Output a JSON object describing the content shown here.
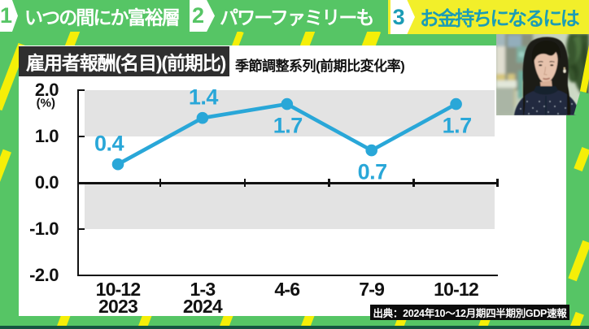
{
  "tab_bar": {
    "tabs": [
      {
        "number": "1",
        "label": "いつの間にか富裕層",
        "active": false
      },
      {
        "number": "2",
        "label": "パワーファミリーも",
        "active": false
      },
      {
        "number": "3",
        "label": "お金持ちになるには",
        "active": true
      }
    ]
  },
  "chart_header": {
    "title": "雇用者報酬(名目)(前期比)",
    "subtitle": "季節調整系列(前期比変化率)"
  },
  "source_note": "出典：2024年10～12月期四半期別GDP速報",
  "chart_data": {
    "type": "line",
    "title": "雇用者報酬(名目)(前期比)",
    "subtitle": "季節調整系列(前期比変化率)",
    "categories": [
      "10-12",
      "1-3",
      "4-6",
      "7-9",
      "10-12"
    ],
    "category_years": [
      {
        "index": 0,
        "label": "2023"
      },
      {
        "index": 1,
        "label": "2024"
      }
    ],
    "values": [
      0.4,
      1.4,
      1.7,
      0.7,
      1.7
    ],
    "value_labels": [
      "0.4",
      "1.4",
      "1.7",
      "0.7",
      "1.7"
    ],
    "value_label_positions": [
      "above",
      "above",
      "below",
      "below",
      "below"
    ],
    "ylabel": "(%)",
    "ylim": [
      -2.0,
      2.0
    ],
    "ytick_labels": [
      "2.0",
      "1.0",
      "0.0",
      "-1.0",
      "-2.0"
    ],
    "yticks": [
      2.0,
      1.0,
      0.0,
      -1.0,
      -2.0
    ],
    "shaded_bands": [
      [
        1.0,
        2.0
      ],
      [
        -1.0,
        0.0
      ]
    ],
    "grid": false,
    "legend": false,
    "source": "出典：2024年10～12月期四半期別GDP速報"
  },
  "inset_video": {
    "description": "studio guest on camera"
  },
  "colors": {
    "green": "#56c565",
    "yellow": "#f2ef2a",
    "stripe_yellow": "#f5ef08",
    "teal": "#1b9cb5",
    "blue": "#29a7d8",
    "titlebg": "#2f2f2f",
    "band": "#e3e3e3",
    "darkstrip": "#155540"
  }
}
